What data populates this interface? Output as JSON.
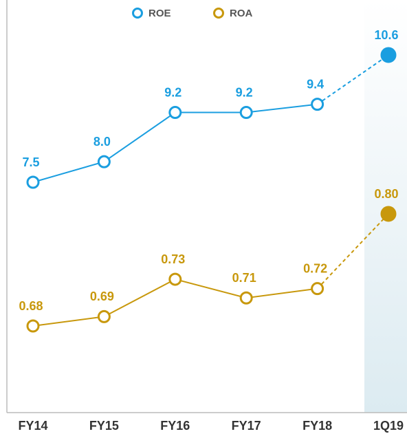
{
  "chart_data": {
    "type": "line",
    "categories": [
      "FY14",
      "FY15",
      "FY16",
      "FY17",
      "FY18",
      "1Q19"
    ],
    "series": [
      {
        "name": "ROE",
        "color": "#1a9ee0",
        "values": [
          7.5,
          8.0,
          9.2,
          9.2,
          9.4,
          10.6
        ],
        "value_labels": [
          "7.5",
          "8.0",
          "9.2",
          "9.2",
          "9.4",
          "10.6"
        ]
      },
      {
        "name": "ROA",
        "color": "#c8980c",
        "values": [
          0.68,
          0.69,
          0.73,
          0.71,
          0.72,
          0.8
        ],
        "value_labels": [
          "0.68",
          "0.69",
          "0.73",
          "0.71",
          "0.72",
          "0.80"
        ]
      }
    ]
  }
}
